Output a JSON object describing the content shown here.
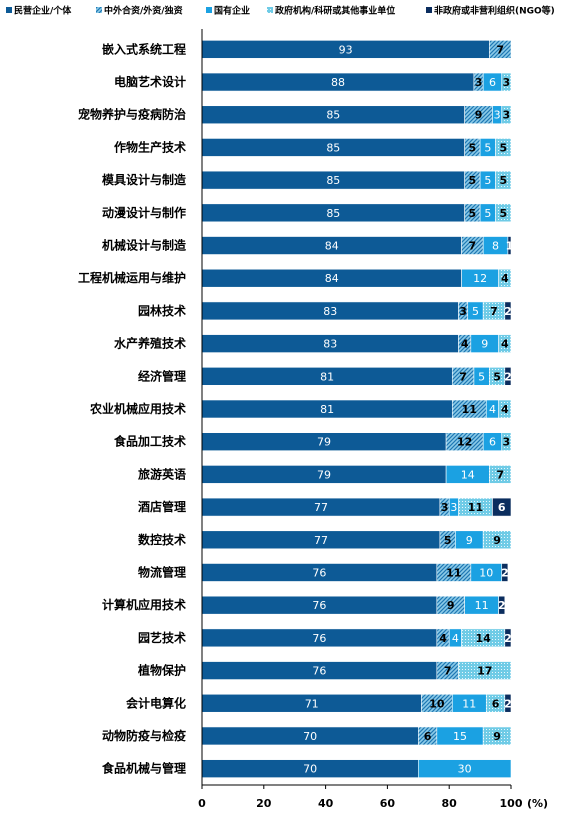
{
  "chart_data": {
    "type": "bar",
    "orientation": "horizontal",
    "stacked": true,
    "unit": "(%)",
    "xlim": [
      0,
      100
    ],
    "xticks": [
      "0",
      "20",
      "40",
      "60",
      "80",
      "100"
    ],
    "legend_position": "top",
    "categories": [
      "嵌入式系统工程",
      "电脑艺术设计",
      "宠物养护与疫病防治",
      "作物生产技术",
      "模具设计与制造",
      "动漫设计与制作",
      "机械设计与制造",
      "工程机械运用与维护",
      "园林技术",
      "水产养殖技术",
      "经济管理",
      "农业机械应用技术",
      "食品加工技术",
      "旅游英语",
      "酒店管理",
      "数控技术",
      "物流管理",
      "计算机应用技术",
      "园艺技术",
      "植物保护",
      "会计电算化",
      "动物防疫与检疫",
      "食品机械与管理"
    ],
    "series": [
      {
        "name": "民营企业/个体",
        "color": "#0d5a96",
        "pattern": "solid",
        "values": [
          93,
          88,
          85,
          85,
          85,
          85,
          84,
          84,
          83,
          83,
          81,
          81,
          79,
          79,
          77,
          77,
          76,
          76,
          76,
          76,
          71,
          70,
          70
        ]
      },
      {
        "name": "中外合资/外资/独资",
        "color": "#2f9dd6",
        "pattern": "hatch",
        "values": [
          7,
          3,
          9,
          5,
          5,
          5,
          7,
          0,
          3,
          4,
          7,
          11,
          12,
          0,
          3,
          5,
          11,
          9,
          4,
          7,
          10,
          6,
          0
        ]
      },
      {
        "name": "国有企业",
        "color": "#1ba1e2",
        "pattern": "solid",
        "values": [
          0,
          6,
          3,
          5,
          5,
          5,
          8,
          12,
          5,
          9,
          5,
          4,
          6,
          14,
          3,
          9,
          10,
          11,
          4,
          0,
          11,
          15,
          30
        ]
      },
      {
        "name": "政府机构/科研或其他事业单位",
        "color": "#5bc0e0",
        "pattern": "dots",
        "values": [
          0,
          3,
          3,
          5,
          5,
          5,
          0,
          4,
          7,
          4,
          5,
          4,
          3,
          7,
          11,
          9,
          0,
          0,
          14,
          17,
          6,
          9,
          0
        ]
      },
      {
        "name": "非政府或非营利组织(NGO等)",
        "color": "#0b2d5e",
        "pattern": "solid",
        "values": [
          0,
          0,
          0,
          0,
          0,
          0,
          1,
          0,
          2,
          0,
          2,
          0,
          0,
          0,
          6,
          0,
          2,
          2,
          2,
          0,
          2,
          0,
          0
        ]
      }
    ]
  }
}
